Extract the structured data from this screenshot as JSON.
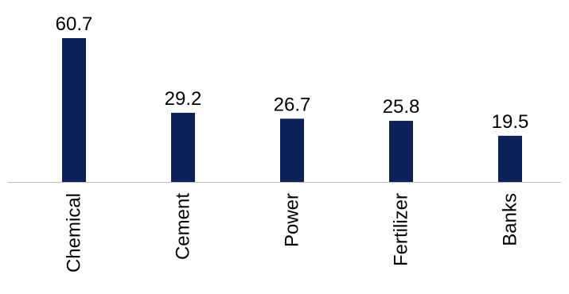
{
  "colors": {
    "bar": "#0c2158",
    "axis": "#bfbfbf",
    "text": "#000000",
    "background": "#ffffff"
  },
  "chart_data": {
    "type": "bar",
    "title": "",
    "xlabel": "",
    "ylabel": "",
    "categories": [
      "Chemical",
      "Cement",
      "Power",
      "Fertilizer",
      "Banks"
    ],
    "values": [
      60.7,
      29.2,
      26.7,
      25.8,
      19.5
    ],
    "ylim": [
      0,
      60.7
    ],
    "grid": false,
    "legend": "none",
    "data_labels": true,
    "category_label_orientation": "vertical"
  }
}
